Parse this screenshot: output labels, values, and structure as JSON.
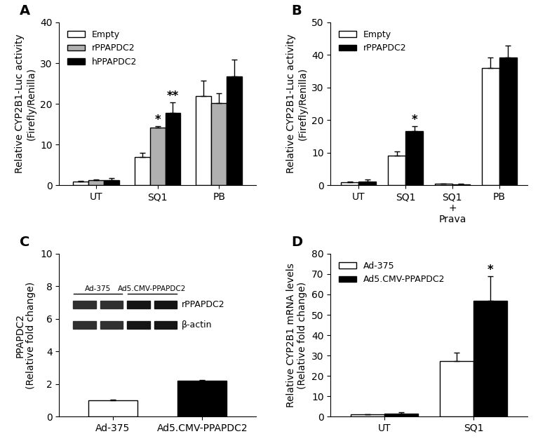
{
  "chart_data": [
    {
      "type": "bar",
      "title": "A",
      "y_label": "Relative CYP2B1-Luc activity\n(Firefly/Renilla)",
      "categories": [
        "UT",
        "SQ1",
        "PB"
      ],
      "series": [
        {
          "name": "Empty",
          "color": "#ffffff",
          "values": [
            1.0,
            7.0,
            22.0
          ],
          "errors": [
            0.1,
            0.9,
            3.7
          ]
        },
        {
          "name": "rPPAPDC2",
          "color": "#b0b0b0",
          "values": [
            1.2,
            14.2,
            20.2
          ],
          "errors": [
            0.2,
            0.4,
            2.4
          ]
        },
        {
          "name": "hPPAPDC2",
          "color": "#000000",
          "values": [
            1.3,
            17.8,
            26.8
          ],
          "errors": [
            0.5,
            2.6,
            4.0
          ]
        }
      ],
      "annotations": [
        {
          "series": "rPPAPDC2",
          "category": "SQ1",
          "text": "*"
        },
        {
          "series": "hPPAPDC2",
          "category": "SQ1",
          "text": "**"
        }
      ],
      "ylim": [
        0,
        40
      ],
      "yticks": [
        0,
        10,
        20,
        30,
        40
      ],
      "legend": "upper left"
    },
    {
      "type": "bar",
      "title": "B",
      "y_label": "Relative CYP2B1-Luc activity\n(Firefly/Renilla)",
      "categories": [
        "UT",
        "SQ1",
        "SQ1\n+\nPrava",
        "PB"
      ],
      "series": [
        {
          "name": "Empty",
          "color": "#ffffff",
          "values": [
            1.0,
            9.0,
            0.5,
            36.0
          ],
          "errors": [
            0.2,
            1.4,
            0.1,
            3.3
          ]
        },
        {
          "name": "rPPAPDC2",
          "color": "#000000",
          "values": [
            1.2,
            16.7,
            0.3,
            39.2
          ],
          "errors": [
            0.5,
            1.5,
            0.1,
            3.6
          ]
        }
      ],
      "annotations": [
        {
          "series": "rPPAPDC2",
          "category": "SQ1",
          "text": "*"
        }
      ],
      "ylim": [
        0,
        50
      ],
      "yticks": [
        0,
        10,
        20,
        30,
        40,
        50
      ],
      "legend": "upper left"
    },
    {
      "type": "bar",
      "title": "C",
      "y_label": "PPAPDC2\n(Relative fold change)",
      "categories": [
        "Ad-375",
        "Ad5.CMV-PPAPDC2"
      ],
      "values": [
        1.0,
        2.2
      ],
      "errors": [
        0.05,
        0.05
      ],
      "colors": [
        "#ffffff",
        "#000000"
      ],
      "inset": {
        "lanes": [
          "Ad-375",
          "Ad5.CMV-PPAPDC2"
        ],
        "bands": [
          "rPPAPDC2",
          "β-actin"
        ]
      },
      "ylim": [
        0,
        10
      ],
      "yticks": [
        0,
        2,
        4,
        6,
        8,
        10
      ]
    },
    {
      "type": "bar",
      "title": "D",
      "y_label": "Relative CYP2B1 mRNA levels\n(Relative fold change)",
      "categories": [
        "UT",
        "SQ1"
      ],
      "series": [
        {
          "name": "Ad-375",
          "color": "#ffffff",
          "values": [
            1.0,
            27.2
          ],
          "errors": [
            0.2,
            4.3
          ]
        },
        {
          "name": "Ad5.CMV-PPAPDC2",
          "color": "#000000",
          "values": [
            1.4,
            56.8
          ],
          "errors": [
            0.6,
            12.0
          ]
        }
      ],
      "annotations": [
        {
          "series": "Ad5.CMV-PPAPDC2",
          "category": "SQ1",
          "text": "*"
        }
      ],
      "ylim": [
        0,
        80
      ],
      "yticks": [
        0,
        10,
        20,
        30,
        40,
        50,
        60,
        70,
        80
      ],
      "legend": "upper left"
    }
  ]
}
